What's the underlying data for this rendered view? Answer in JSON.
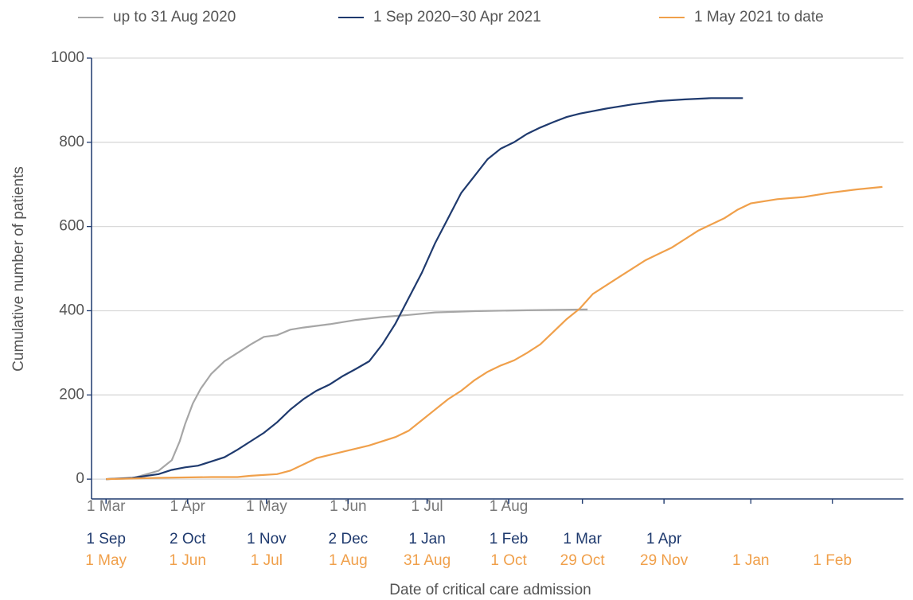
{
  "chart_data": {
    "type": "line",
    "ylabel": "Cumulative number of patients",
    "xlabel": "Date of critical care admission",
    "xlim": [
      -5.5,
      303
    ],
    "ylim": [
      -47,
      1000
    ],
    "yticks": [
      0,
      200,
      400,
      600,
      800,
      1000
    ],
    "grid": true,
    "legend": "top",
    "xtick_rows": [
      {
        "color": "#777777",
        "ticks": [
          {
            "value": 0,
            "label": "1 Mar"
          },
          {
            "value": 31,
            "label": "1 Apr"
          },
          {
            "value": 61,
            "label": "1 May"
          },
          {
            "value": 92,
            "label": "1 Jun"
          },
          {
            "value": 122,
            "label": "1 Jul"
          },
          {
            "value": 153,
            "label": "1 Aug"
          }
        ]
      },
      {
        "color": "#1f3a6e",
        "ticks": [
          {
            "value": 0,
            "label": "1 Sep"
          },
          {
            "value": 31,
            "label": "2 Oct"
          },
          {
            "value": 61,
            "label": "1 Nov"
          },
          {
            "value": 92,
            "label": "2 Dec"
          },
          {
            "value": 122,
            "label": "1 Jan"
          },
          {
            "value": 153,
            "label": "1 Feb"
          },
          {
            "value": 181,
            "label": "1 Mar"
          },
          {
            "value": 212,
            "label": "1 Apr"
          }
        ]
      },
      {
        "color": "#f0a04b",
        "ticks": [
          {
            "value": 0,
            "label": "1 May"
          },
          {
            "value": 31,
            "label": "1 Jun"
          },
          {
            "value": 61,
            "label": "1 Jul"
          },
          {
            "value": 92,
            "label": "1 Aug"
          },
          {
            "value": 122,
            "label": "31 Aug"
          },
          {
            "value": 153,
            "label": "1 Oct"
          },
          {
            "value": 181,
            "label": "29 Oct"
          },
          {
            "value": 212,
            "label": "29 Nov"
          },
          {
            "value": 245,
            "label": "1 Jan"
          },
          {
            "value": 276,
            "label": "1 Feb"
          }
        ]
      }
    ],
    "series": [
      {
        "name": "up to 31 Aug 2020",
        "color": "#a6a6a6",
        "x": [
          0,
          10,
          20,
          25,
          28,
          30,
          33,
          36,
          40,
          45,
          50,
          55,
          60,
          65,
          70,
          75,
          85,
          95,
          105,
          115,
          125,
          140,
          160,
          183
        ],
        "values": [
          0,
          2,
          20,
          45,
          90,
          130,
          180,
          215,
          250,
          280,
          300,
          320,
          338,
          342,
          355,
          360,
          368,
          378,
          385,
          390,
          396,
          399,
          401,
          403
        ]
      },
      {
        "name": "1 Sep 2020−30 Apr 2021",
        "color": "#1f3a6e",
        "x": [
          0,
          10,
          20,
          25,
          30,
          35,
          40,
          45,
          50,
          55,
          60,
          65,
          70,
          75,
          80,
          85,
          90,
          95,
          100,
          105,
          110,
          115,
          120,
          125,
          130,
          135,
          140,
          145,
          150,
          155,
          160,
          165,
          170,
          175,
          180,
          190,
          200,
          210,
          220,
          230,
          242
        ],
        "values": [
          0,
          3,
          12,
          22,
          28,
          32,
          42,
          52,
          70,
          90,
          110,
          135,
          165,
          190,
          210,
          225,
          245,
          262,
          280,
          320,
          370,
          430,
          490,
          560,
          620,
          680,
          720,
          760,
          785,
          800,
          820,
          835,
          848,
          860,
          868,
          880,
          890,
          898,
          902,
          905,
          905
        ]
      },
      {
        "name": "1 May 2021 to date",
        "color": "#f0a04b",
        "x": [
          0,
          20,
          40,
          50,
          55,
          65,
          70,
          75,
          80,
          90,
          100,
          110,
          115,
          120,
          125,
          130,
          135,
          140,
          145,
          150,
          155,
          160,
          165,
          170,
          175,
          180,
          185,
          190,
          195,
          200,
          205,
          210,
          215,
          220,
          225,
          230,
          235,
          240,
          245,
          255,
          265,
          275,
          285,
          295
        ],
        "values": [
          0,
          3,
          5,
          5,
          8,
          12,
          20,
          35,
          50,
          65,
          80,
          100,
          115,
          140,
          165,
          190,
          210,
          235,
          255,
          270,
          282,
          300,
          320,
          350,
          380,
          405,
          440,
          460,
          480,
          500,
          520,
          535,
          550,
          570,
          590,
          605,
          620,
          640,
          655,
          665,
          670,
          680,
          688,
          694
        ]
      }
    ]
  }
}
